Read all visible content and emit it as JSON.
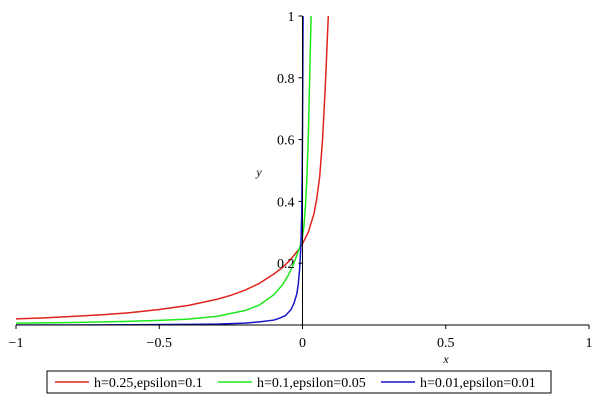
{
  "chart_data": {
    "type": "line",
    "title": "",
    "xlabel": "x",
    "ylabel": "y",
    "xlim": [
      -1,
      1
    ],
    "ylim": [
      0,
      1
    ],
    "x_ticks": [
      -1,
      -0.5,
      0,
      0.5,
      1
    ],
    "x_tick_labels": [
      "−1",
      "−0.5",
      "0",
      "0.5",
      "1"
    ],
    "y_ticks": [
      0.2,
      0.4,
      0.6,
      0.8,
      1
    ],
    "y_tick_labels": [
      "0.2",
      "0.4",
      "0.6",
      "0.8",
      "1"
    ],
    "grid": false,
    "legend_position": "bottom",
    "series": [
      {
        "name": "h=0.25,epsilon=0.1",
        "color": "#e0231c",
        "x": [
          -1,
          -0.9,
          -0.8,
          -0.7,
          -0.6,
          -0.5,
          -0.4,
          -0.3,
          -0.25,
          -0.2,
          -0.15,
          -0.1,
          -0.07,
          -0.05,
          -0.03,
          -0.01,
          0,
          0.02,
          0.04,
          0.05,
          0.06,
          0.07,
          0.08,
          0.09
        ],
        "y": [
          0.02,
          0.023,
          0.028,
          0.033,
          0.04,
          0.05,
          0.063,
          0.083,
          0.096,
          0.113,
          0.135,
          0.165,
          0.186,
          0.204,
          0.225,
          0.248,
          0.263,
          0.3,
          0.36,
          0.41,
          0.48,
          0.6,
          0.78,
          1.0
        ]
      },
      {
        "name": "h=0.1,epsilon=0.05",
        "color": "#1ee81e",
        "x": [
          -1,
          -0.9,
          -0.8,
          -0.7,
          -0.6,
          -0.5,
          -0.4,
          -0.3,
          -0.2,
          -0.15,
          -0.1,
          -0.07,
          -0.05,
          -0.03,
          -0.01,
          0,
          0.005,
          0.01,
          0.015,
          0.02,
          0.025,
          0.03
        ],
        "y": [
          0.006,
          0.007,
          0.008,
          0.01,
          0.012,
          0.015,
          0.019,
          0.028,
          0.047,
          0.065,
          0.098,
          0.13,
          0.16,
          0.2,
          0.25,
          0.285,
          0.32,
          0.38,
          0.47,
          0.6,
          0.8,
          1.0
        ]
      },
      {
        "name": "h=0.01,epsilon=0.01",
        "color": "#1616c8",
        "x": [
          -1,
          -0.8,
          -0.6,
          -0.4,
          -0.3,
          -0.2,
          -0.15,
          -0.1,
          -0.08,
          -0.06,
          -0.04,
          -0.03,
          -0.02,
          -0.015,
          -0.01,
          -0.006,
          -0.003,
          -0.001,
          0,
          0.001,
          0.002
        ],
        "y": [
          0.0,
          0.0,
          0.001,
          0.002,
          0.003,
          0.006,
          0.01,
          0.016,
          0.022,
          0.03,
          0.05,
          0.07,
          0.1,
          0.13,
          0.18,
          0.25,
          0.35,
          0.5,
          0.62,
          0.8,
          1.0
        ]
      }
    ]
  }
}
